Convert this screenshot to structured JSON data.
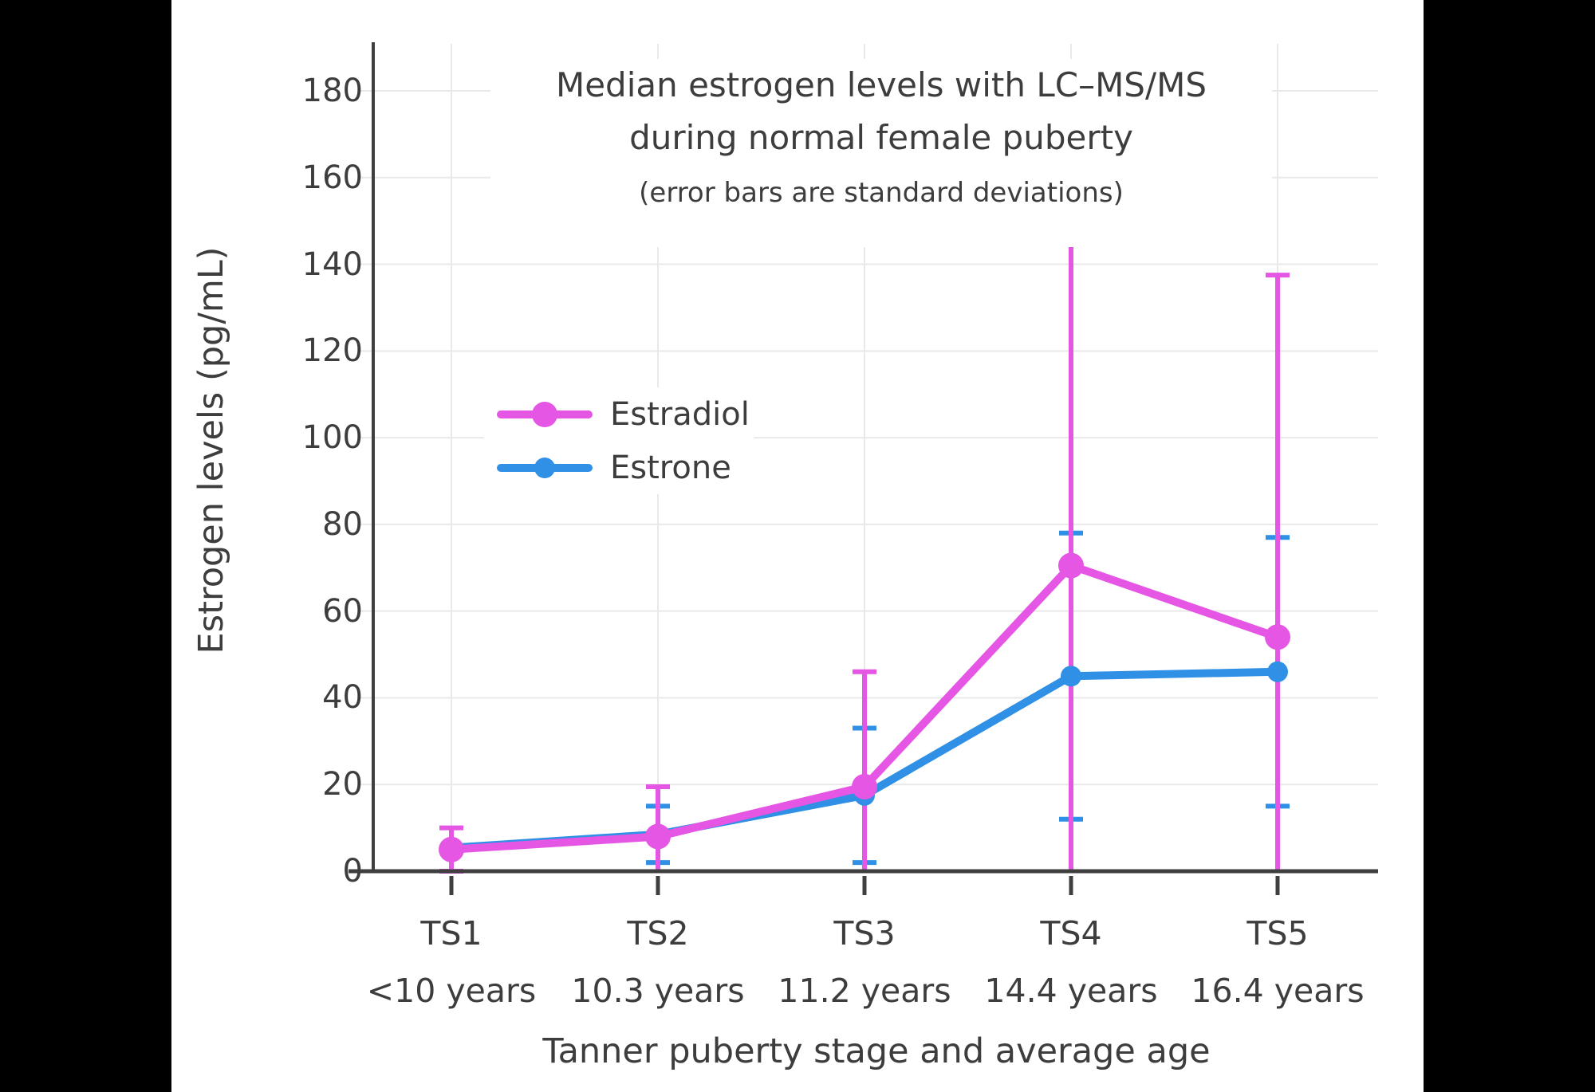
{
  "figure": {
    "background_color": "#000000",
    "panel_color": "#ffffff",
    "axis_color": "#3f3f3f",
    "text_color": "#3d3d3d",
    "gridline_color": "#e9e9e9"
  },
  "chart_data": {
    "type": "line",
    "title": "Median estrogen levels with LC–MS/MS during normal female puberty",
    "title_line1": "Median estrogen levels with LC–MS/MS",
    "title_line2": "during normal female puberty",
    "subtitle": "(error bars are standard deviations)",
    "xlabel": "Tanner puberty stage and average age",
    "ylabel": "Estrogen levels (pg/mL)",
    "categories": [
      "TS1",
      "TS2",
      "TS3",
      "TS4",
      "TS5"
    ],
    "age_labels": [
      "<10 years",
      "10.3 years",
      "11.2 years",
      "14.4 years",
      "16.4 years"
    ],
    "yticks": [
      0,
      20,
      40,
      60,
      80,
      100,
      120,
      140,
      160,
      180
    ],
    "ylim": [
      0,
      190
    ],
    "grid": true,
    "error_bar_meaning": "standard deviations",
    "error_bars_clipped_at_zero": true,
    "legend_position": "inside upper-left",
    "series": [
      {
        "name": "Estradiol",
        "color": "#e556e4",
        "marker_diameter": 32,
        "values": [
          5,
          8,
          19.5,
          70.5,
          54
        ],
        "sd": [
          5,
          11.5,
          26.5,
          84,
          83.5
        ]
      },
      {
        "name": "Estrone",
        "color": "#2f90e5",
        "marker_diameter": 26,
        "values": [
          5.4,
          8.5,
          17.5,
          45,
          46
        ],
        "sd": [
          null,
          6.5,
          15.5,
          33,
          31
        ]
      }
    ]
  }
}
